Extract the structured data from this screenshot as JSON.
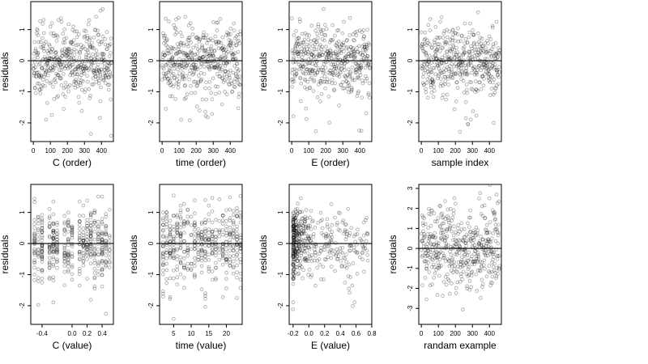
{
  "figure": {
    "point_color": "#000000",
    "point_opacity": 0.35
  },
  "chart_data": [
    {
      "type": "scatter",
      "xlabel": "C (order)",
      "ylabel": "residuals",
      "xlim": [
        -15,
        470
      ],
      "ylim": [
        -2.6,
        1.9
      ],
      "xticks": [
        0,
        100,
        200,
        300,
        400
      ],
      "yticks": [
        -2,
        -1,
        0,
        1
      ],
      "hline": 0,
      "x_pattern": "index",
      "n_points": 460,
      "seed": 11
    },
    {
      "type": "scatter",
      "xlabel": "time (order)",
      "ylabel": "residuals",
      "xlim": [
        -15,
        470
      ],
      "ylim": [
        -2.6,
        1.9
      ],
      "xticks": [
        0,
        100,
        200,
        300,
        400
      ],
      "yticks": [
        -2,
        -1,
        0,
        1
      ],
      "hline": 0,
      "x_pattern": "index",
      "n_points": 460,
      "seed": 23
    },
    {
      "type": "scatter",
      "xlabel": "E (order)",
      "ylabel": "residuals",
      "xlim": [
        -15,
        470
      ],
      "ylim": [
        -2.6,
        1.9
      ],
      "xticks": [
        0,
        100,
        200,
        300,
        400
      ],
      "yticks": [
        -2,
        -1,
        0,
        1
      ],
      "hline": 0,
      "x_pattern": "index",
      "n_points": 460,
      "seed": 37
    },
    {
      "type": "scatter",
      "xlabel": "sample index",
      "ylabel": "residuals",
      "xlim": [
        -15,
        470
      ],
      "ylim": [
        -2.6,
        1.9
      ],
      "xticks": [
        0,
        100,
        200,
        300,
        400
      ],
      "yticks": [
        -2,
        -1,
        0,
        1
      ],
      "hline": 0,
      "x_pattern": "index",
      "n_points": 460,
      "seed": 41
    },
    {
      "type": "scatter",
      "xlabel": "C (value)",
      "ylabel": "residuals",
      "xlim": [
        -0.55,
        0.55
      ],
      "ylim": [
        -2.6,
        1.9
      ],
      "xticks": [
        -0.4,
        0.0,
        0.2,
        0.4
      ],
      "xtick_labels": [
        "-0.4",
        "0.0",
        "0.2",
        "0.4"
      ],
      "yticks": [
        -2,
        -1,
        0,
        1
      ],
      "hline": 0,
      "x_pattern": "discrete",
      "x_levels": [
        -0.5,
        -0.45,
        -0.4,
        -0.3,
        -0.25,
        -0.2,
        -0.1,
        -0.05,
        0.0,
        0.1,
        0.15,
        0.2,
        0.25,
        0.3,
        0.35,
        0.4,
        0.45,
        0.5
      ],
      "n_points": 460,
      "seed": 53
    },
    {
      "type": "scatter",
      "xlabel": "time (value)",
      "ylabel": "residuals",
      "xlim": [
        1,
        24.5
      ],
      "ylim": [
        -2.6,
        1.9
      ],
      "xticks": [
        5,
        10,
        15,
        20
      ],
      "yticks": [
        -2,
        -1,
        0,
        1
      ],
      "hline": 0,
      "x_pattern": "discrete",
      "x_levels": [
        2,
        3,
        4,
        5,
        6,
        7,
        8,
        9,
        10,
        11,
        12,
        13,
        14,
        15,
        16,
        17,
        18,
        19,
        20,
        21,
        22,
        23,
        24
      ],
      "n_points": 460,
      "seed": 67
    },
    {
      "type": "scatter",
      "xlabel": "E (value)",
      "ylabel": "residuals",
      "xlim": [
        -0.25,
        0.8
      ],
      "ylim": [
        -2.6,
        1.9
      ],
      "xticks": [
        -0.2,
        0.0,
        0.2,
        0.4,
        0.6,
        0.8
      ],
      "xtick_labels": [
        "-0.2",
        "0.0",
        "0.2",
        "0.4",
        "0.6",
        "0.8"
      ],
      "yticks": [
        -2,
        -1,
        0,
        1
      ],
      "hline": 0,
      "x_pattern": "skewed",
      "x_range": [
        -0.2,
        0.75
      ],
      "n_points": 460,
      "seed": 79
    },
    {
      "type": "scatter",
      "xlabel": "randam example",
      "ylabel": "residuals",
      "xlim": [
        -15,
        470
      ],
      "ylim": [
        -3.8,
        3.2
      ],
      "xticks": [
        0,
        100,
        200,
        300,
        400
      ],
      "yticks": [
        -3,
        -2,
        -1,
        0,
        1,
        2,
        3
      ],
      "hline": 0,
      "x_pattern": "index",
      "n_points": 460,
      "seed": 97
    }
  ]
}
